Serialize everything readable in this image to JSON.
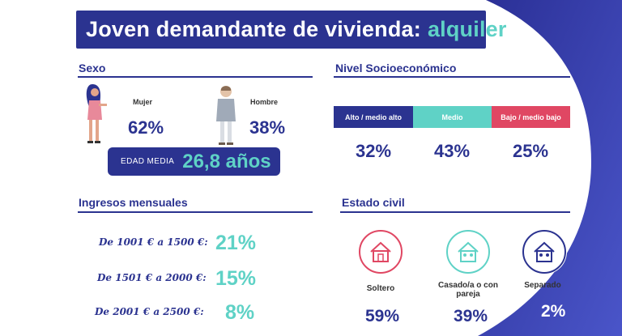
{
  "title": {
    "main": "Joven demandante de vivienda:",
    "accent": "alquiler"
  },
  "colors": {
    "navy": "#2b3390",
    "teal": "#5fd2c6",
    "pink": "#e04763",
    "blue": "#2c2f95"
  },
  "sexo": {
    "heading": "Sexo",
    "mujer": {
      "label": "Mujer",
      "pct": "62%"
    },
    "hombre": {
      "label": "Hombre",
      "pct": "38%"
    },
    "edad": {
      "label": "EDAD MEDIA",
      "value": "26,8 años"
    }
  },
  "nivel": {
    "heading": "Nivel Socioeconómico",
    "segments": [
      {
        "label": "Alto / medio alto",
        "pct": "32%"
      },
      {
        "label": "Medio",
        "pct": "43%"
      },
      {
        "label": "Bajo / medio bajo",
        "pct": "25%"
      }
    ]
  },
  "ingresos": {
    "heading": "Ingresos mensuales",
    "rows": [
      {
        "label": "De 1001 € a 1500 €:",
        "value": "21%"
      },
      {
        "label": "De 1501 € a 2000 €:",
        "value": "15%"
      },
      {
        "label": "De 2001 € a 2500 €:",
        "value": "8%"
      }
    ]
  },
  "civil": {
    "heading": "Estado civil",
    "items": [
      {
        "label": "Soltero",
        "pct": "59%",
        "icon": "house-icon"
      },
      {
        "label": "Casado/a o con pareja",
        "pct": "39%",
        "icon": "house-couple-icon"
      },
      {
        "label": "Separado",
        "pct": "2%",
        "icon": "house-split-icon"
      }
    ]
  }
}
